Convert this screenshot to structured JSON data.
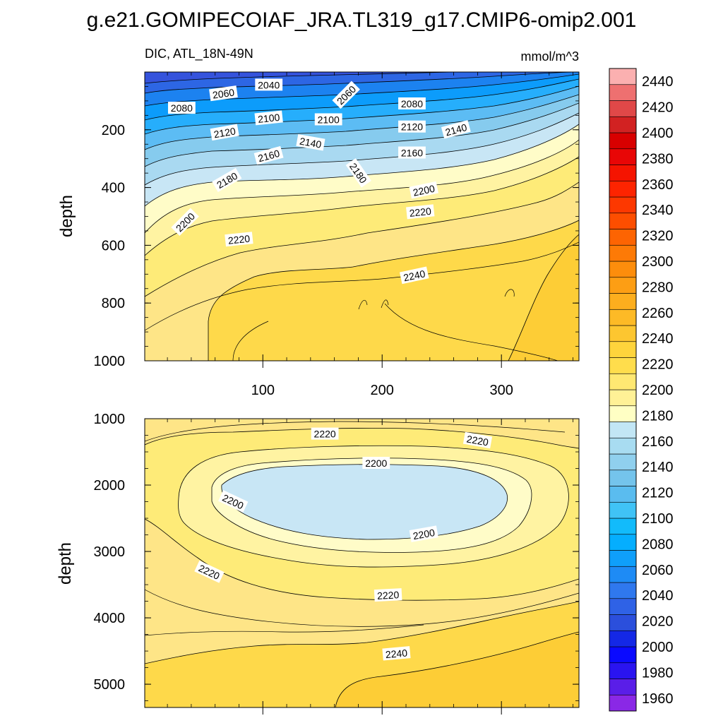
{
  "figure": {
    "title": "g.e21.GOMIPECOIAF_JRA.TL319_g17.CMIP6-omip2.001",
    "panel_left_label": "DIC, ATL_18N-49N",
    "panel_right_label": "mmol/m^3"
  },
  "chart_data": [
    {
      "type": "heatmap",
      "name": "upper",
      "title": "DIC, ATL_18N-49N",
      "units": "mmol/m^3",
      "ylabel": "depth",
      "xlabel": "",
      "xlim": [
        1,
        365
      ],
      "ylim": [
        1000,
        0
      ],
      "xticks": [
        100,
        200,
        300
      ],
      "yticks": [
        200,
        400,
        600,
        800,
        1000
      ],
      "contour_labels": [
        {
          "text": "2040",
          "x": 105,
          "depth": 45
        },
        {
          "text": "2060",
          "x": 67,
          "depth": 75
        },
        {
          "text": "2060",
          "x": 170,
          "depth": 80
        },
        {
          "text": "2080",
          "x": 32,
          "depth": 125
        },
        {
          "text": "2080",
          "x": 225,
          "depth": 110
        },
        {
          "text": "2100",
          "x": 105,
          "depth": 160
        },
        {
          "text": "2100",
          "x": 155,
          "depth": 165
        },
        {
          "text": "2120",
          "x": 68,
          "depth": 210
        },
        {
          "text": "2120",
          "x": 225,
          "depth": 190
        },
        {
          "text": "2140",
          "x": 140,
          "depth": 245
        },
        {
          "text": "2140",
          "x": 262,
          "depth": 200
        },
        {
          "text": "2160",
          "x": 105,
          "depth": 290
        },
        {
          "text": "2160",
          "x": 225,
          "depth": 280
        },
        {
          "text": "2180",
          "x": 70,
          "depth": 375
        },
        {
          "text": "2180",
          "x": 180,
          "depth": 350
        },
        {
          "text": "2200",
          "x": 35,
          "depth": 520
        },
        {
          "text": "2200",
          "x": 235,
          "depth": 410
        },
        {
          "text": "2220",
          "x": 80,
          "depth": 580
        },
        {
          "text": "2220",
          "x": 232,
          "depth": 485
        },
        {
          "text": "2240",
          "x": 227,
          "depth": 705
        }
      ]
    },
    {
      "type": "heatmap",
      "name": "lower",
      "title": "",
      "ylabel": "depth",
      "xlabel": "",
      "xlim": [
        1,
        365
      ],
      "ylim": [
        5350,
        1000
      ],
      "xticks": [
        100,
        200,
        300
      ],
      "yticks": [
        1000,
        2000,
        3000,
        4000,
        5000
      ],
      "contour_labels": [
        {
          "text": "2220",
          "x": 152,
          "depth": 1230
        },
        {
          "text": "2220",
          "x": 280,
          "depth": 1330
        },
        {
          "text": "2200",
          "x": 195,
          "depth": 1670
        },
        {
          "text": "2200",
          "x": 75,
          "depth": 2250
        },
        {
          "text": "2200",
          "x": 235,
          "depth": 2740
        },
        {
          "text": "2220",
          "x": 55,
          "depth": 3310
        },
        {
          "text": "2220",
          "x": 205,
          "depth": 3660
        },
        {
          "text": "2240",
          "x": 212,
          "depth": 4540
        }
      ]
    },
    {
      "type": "heatmap",
      "name": "colorbar",
      "levels": [
        1960,
        1980,
        2000,
        2020,
        2040,
        2060,
        2080,
        2100,
        2120,
        2140,
        2160,
        2180,
        2200,
        2220,
        2240,
        2260,
        2280,
        2300,
        2320,
        2340,
        2360,
        2380,
        2400,
        2420,
        2440
      ],
      "colors": [
        "#8a28e6",
        "#5a1ee8",
        "#2a14f0",
        "#0a0aff",
        "#1428e6",
        "#2b4fdc",
        "#2f62e6",
        "#2f78ee",
        "#1e8bf5",
        "#0f9ffa",
        "#05aefe",
        "#12bbfb",
        "#40c3f6",
        "#5abcef",
        "#74c4ec",
        "#90d0ee",
        "#a8dcf1",
        "#c2e6f5",
        "#ffffc4",
        "#fff196",
        "#ffe872",
        "#ffdd4c",
        "#fed43c",
        "#fdc630",
        "#fdba26",
        "#fdae1e",
        "#fd9e14",
        "#fd8d0c",
        "#fd7a06",
        "#fd6402",
        "#fd4e00",
        "#fd3800",
        "#fd2400",
        "#f51400",
        "#e80606",
        "#d80000",
        "#d22222",
        "#e04848",
        "#ee7070",
        "#fbb0b0"
      ]
    }
  ]
}
